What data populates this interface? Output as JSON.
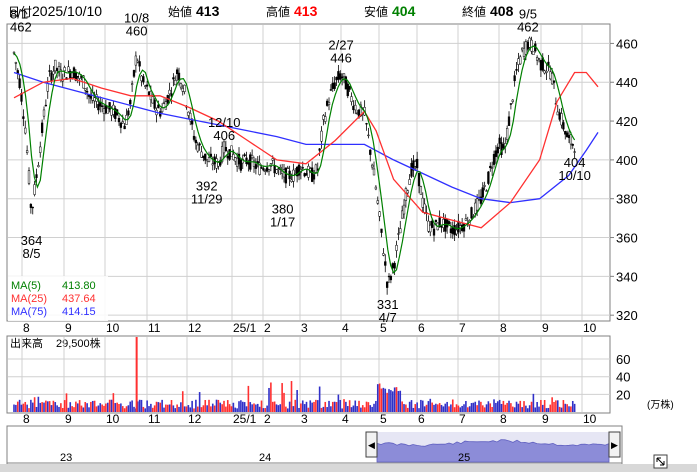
{
  "header": {
    "date_label": "日付",
    "date_value": "2025/10/10",
    "open_label": "始値",
    "open_value": "413",
    "high_label": "高値",
    "high_value": "413",
    "low_label": "安値",
    "low_value": "404",
    "close_label": "終値",
    "close_value": "408"
  },
  "colors": {
    "up_red": "#ff0000",
    "low_green": "#008000",
    "ma5": "#008000",
    "ma25": "#ff3030",
    "ma75": "#3030ff",
    "volume_bar": "#3030c8",
    "volume_spike": "#ff3030",
    "candle_up": "#ffffff",
    "candle_down": "#000000",
    "grid": "#c8c8c8"
  },
  "legend": [
    {
      "name": "MA(5)",
      "value": "413.80",
      "color": "#008000"
    },
    {
      "name": "MA(25)",
      "value": "437.64",
      "color": "#ff3030"
    },
    {
      "name": "MA(75)",
      "value": "414.15",
      "color": "#3030ff"
    }
  ],
  "volume_header": {
    "label": "出来高",
    "value": "29,500株"
  },
  "volume_unit": "(万株)",
  "navigator": {
    "year_labels": [
      "23",
      "24",
      "25"
    ],
    "left_arrow": "◀",
    "right_arrow": "▶",
    "expand_icon": "expand-icon"
  },
  "chart_data": {
    "type": "candlestick",
    "title": "",
    "xlabel": "",
    "ylabel": "",
    "price_axis": {
      "ticks": [
        320,
        340,
        360,
        380,
        400,
        420,
        440,
        460
      ],
      "ylim": [
        317,
        470
      ]
    },
    "volume_axis": {
      "ticks": [
        20,
        40,
        60
      ],
      "ylim": [
        0,
        85
      ],
      "unit": "(万株)"
    },
    "x_tick_labels": [
      "8",
      "9",
      "10",
      "11",
      "12",
      "25/1",
      "2",
      "3",
      "4",
      "5",
      "6",
      "7",
      "8",
      "9",
      "10"
    ],
    "close_path": [
      [
        0,
        455
      ],
      [
        1,
        440
      ],
      [
        2,
        415
      ],
      [
        3,
        372
      ],
      [
        4,
        395
      ],
      [
        5,
        420
      ],
      [
        6,
        442
      ],
      [
        7,
        448
      ],
      [
        8,
        444
      ],
      [
        10,
        446
      ],
      [
        12,
        440
      ],
      [
        13,
        432
      ],
      [
        15,
        428
      ],
      [
        17,
        425
      ],
      [
        19,
        418
      ],
      [
        20,
        430
      ],
      [
        21,
        455
      ],
      [
        22,
        440
      ],
      [
        23,
        435
      ],
      [
        24,
        428
      ],
      [
        25,
        425
      ],
      [
        26,
        430
      ],
      [
        27,
        437
      ],
      [
        28,
        446
      ],
      [
        29,
        438
      ],
      [
        31,
        410
      ],
      [
        33,
        400
      ],
      [
        35,
        398
      ],
      [
        36,
        406
      ],
      [
        37,
        404
      ],
      [
        38,
        401
      ],
      [
        39,
        398
      ],
      [
        40,
        400
      ],
      [
        42,
        396
      ],
      [
        44,
        398
      ],
      [
        46,
        392
      ],
      [
        48,
        392
      ],
      [
        49,
        397
      ],
      [
        50,
        394
      ],
      [
        51,
        392
      ],
      [
        52,
        395
      ],
      [
        53,
        420
      ],
      [
        54,
        432
      ],
      [
        55,
        440
      ],
      [
        56,
        444
      ],
      [
        57,
        438
      ],
      [
        58,
        430
      ],
      [
        59,
        425
      ],
      [
        60,
        424
      ],
      [
        61,
        405
      ],
      [
        62,
        385
      ],
      [
        63,
        360
      ],
      [
        64,
        335
      ],
      [
        65,
        345
      ],
      [
        66,
        362
      ],
      [
        67,
        380
      ],
      [
        68,
        395
      ],
      [
        69,
        397
      ],
      [
        70,
        378
      ],
      [
        71,
        366
      ],
      [
        72,
        365
      ],
      [
        73,
        368
      ],
      [
        74,
        366
      ],
      [
        75,
        364
      ],
      [
        76,
        365
      ],
      [
        77,
        367
      ],
      [
        78,
        370
      ],
      [
        79,
        375
      ],
      [
        80,
        380
      ],
      [
        81,
        388
      ],
      [
        82,
        400
      ],
      [
        83,
        408
      ],
      [
        84,
        405
      ],
      [
        85,
        425
      ],
      [
        86,
        445
      ],
      [
        87,
        455
      ],
      [
        88,
        460
      ],
      [
        89,
        458
      ],
      [
        90,
        450
      ],
      [
        91,
        448
      ],
      [
        92,
        445
      ],
      [
        93,
        428
      ],
      [
        94,
        418
      ],
      [
        95,
        410
      ],
      [
        96,
        408
      ]
    ],
    "ma25_path": [
      [
        0,
        432
      ],
      [
        5,
        440
      ],
      [
        10,
        442
      ],
      [
        15,
        437
      ],
      [
        20,
        433
      ],
      [
        25,
        433
      ],
      [
        30,
        427
      ],
      [
        35,
        420
      ],
      [
        40,
        410
      ],
      [
        45,
        400
      ],
      [
        50,
        398
      ],
      [
        55,
        410
      ],
      [
        60,
        425
      ],
      [
        62,
        415
      ],
      [
        65,
        390
      ],
      [
        70,
        373
      ],
      [
        75,
        369
      ],
      [
        80,
        365
      ],
      [
        85,
        378
      ],
      [
        90,
        400
      ],
      [
        93,
        430
      ],
      [
        96,
        445
      ],
      [
        98,
        445
      ],
      [
        100,
        437.64
      ]
    ],
    "ma75_path": [
      [
        0,
        445
      ],
      [
        5,
        440
      ],
      [
        10,
        436
      ],
      [
        15,
        432
      ],
      [
        20,
        428
      ],
      [
        25,
        424
      ],
      [
        30,
        421
      ],
      [
        35,
        418
      ],
      [
        40,
        415
      ],
      [
        45,
        412
      ],
      [
        50,
        408
      ],
      [
        55,
        408
      ],
      [
        60,
        408
      ],
      [
        65,
        400
      ],
      [
        70,
        393
      ],
      [
        75,
        386
      ],
      [
        80,
        380
      ],
      [
        85,
        378
      ],
      [
        90,
        380
      ],
      [
        95,
        392
      ],
      [
        98,
        405
      ],
      [
        100,
        414.15
      ]
    ],
    "annotations": [
      {
        "text": "8/1\n462",
        "x": 0,
        "y": 462,
        "kind": "high"
      },
      {
        "text": "364\n8/5",
        "x": 3,
        "y": 364,
        "kind": "low"
      },
      {
        "text": "10/8\n460",
        "x": 21,
        "y": 460,
        "kind": "high"
      },
      {
        "text": "12/10\n406",
        "x": 36,
        "y": 406,
        "kind": "high"
      },
      {
        "text": "392\n11/29",
        "x": 33,
        "y": 392,
        "kind": "low"
      },
      {
        "text": "380\n1/17",
        "x": 46,
        "y": 380,
        "kind": "low"
      },
      {
        "text": "2/27\n446",
        "x": 56,
        "y": 446,
        "kind": "high"
      },
      {
        "text": "331\n4/7",
        "x": 64,
        "y": 331,
        "kind": "low"
      },
      {
        "text": "9/5\n462",
        "x": 88,
        "y": 462,
        "kind": "high"
      },
      {
        "text": "404\n10/10",
        "x": 96,
        "y": 404,
        "kind": "low"
      }
    ],
    "volume_spike": {
      "date": "10/8",
      "value": 85
    }
  }
}
